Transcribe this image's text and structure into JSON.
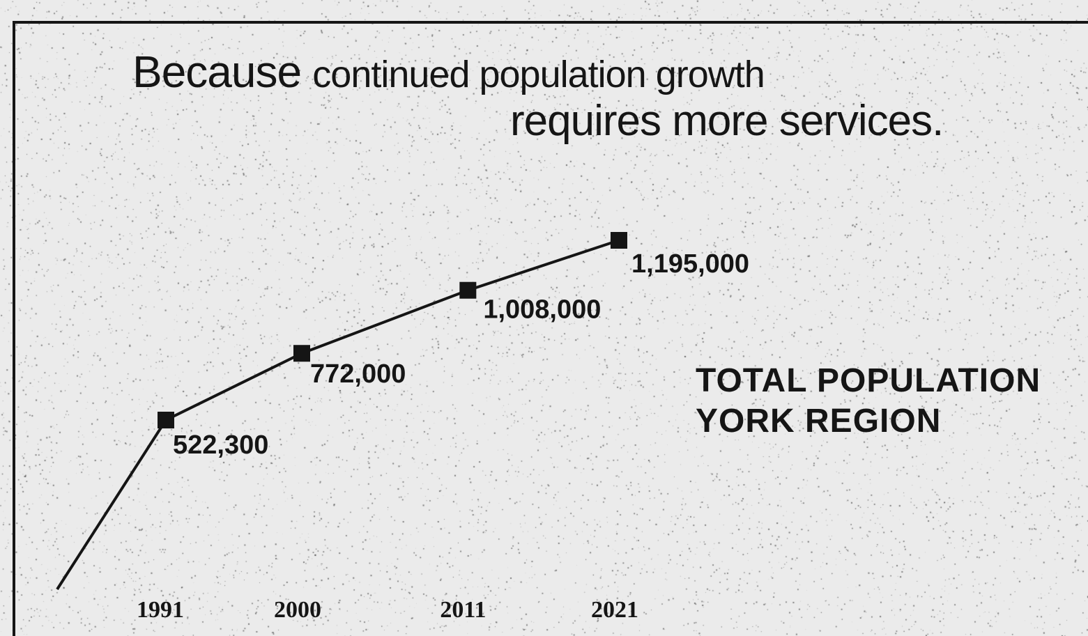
{
  "headline": {
    "word1": "Because",
    "word2": "continued population growth",
    "line2": "requires more services."
  },
  "colors": {
    "ink": "#151515",
    "paper": "#ebebeb"
  },
  "chart_data": {
    "type": "line",
    "title": "TOTAL POPULATION YORK REGION",
    "title_lines": [
      "TOTAL POPULATION",
      "YORK REGION"
    ],
    "categories": [
      "1991",
      "2000",
      "2011",
      "2021"
    ],
    "series": [
      {
        "values": [
          522300,
          772000,
          1008000,
          1195000
        ],
        "labels": [
          "522,300",
          "772,000",
          "1,008,000",
          "1,195,000"
        ]
      }
    ],
    "xlabel": "",
    "ylabel": "",
    "grid": false,
    "legend": "right"
  }
}
